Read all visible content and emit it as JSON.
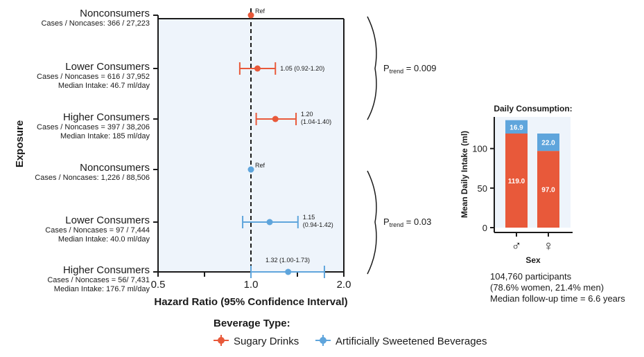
{
  "colors": {
    "sugary": "#e8593a",
    "artificial": "#5fa5dc",
    "panel_bg": "#eef4fb",
    "axis": "#1a1a1a"
  },
  "chart_data": [
    {
      "type": "forest",
      "ylabel": "Exposure",
      "xlabel": "Hazard Ratio (95% Confidence Interval)",
      "xscale": "log",
      "xlim": [
        0.5,
        2.0
      ],
      "xticks": [
        0.5,
        0.7071,
        1.0,
        1.4142,
        2.0
      ],
      "xtick_labels": [
        "0.5",
        "",
        "1.0",
        "",
        "2.0"
      ],
      "reference_line": 1.0,
      "rows": [
        {
          "group": "Sugary Drinks",
          "series": "sugary",
          "title": "Nonconsumers",
          "sub": [
            "Cases / Noncases: 366 / 27,223"
          ],
          "hr": 1.0,
          "lo": null,
          "hi": null,
          "label": "Ref"
        },
        {
          "group": "Sugary Drinks",
          "series": "sugary",
          "title": "Lower Consumers",
          "sub": [
            "Cases / Noncases = 616 / 37,952",
            "Median Intake: 46.7 ml/day"
          ],
          "hr": 1.05,
          "lo": 0.92,
          "hi": 1.2,
          "label": "1.05 (0.92-1.20)"
        },
        {
          "group": "Sugary Drinks",
          "series": "sugary",
          "title": "Higher Consumers",
          "sub": [
            "Cases / Noncases = 397 / 38,206",
            "Median Intake: 185 ml/day"
          ],
          "hr": 1.2,
          "lo": 1.04,
          "hi": 1.4,
          "label": "1.20\n(1.04-1.40)"
        },
        {
          "group": "Artificially Sweetened Beverages",
          "series": "artificial",
          "title": "Nonconsumers",
          "sub": [
            "Cases / Noncases: 1,226 / 88,506"
          ],
          "hr": 1.0,
          "lo": null,
          "hi": null,
          "label": "Ref"
        },
        {
          "group": "Artificially Sweetened Beverages",
          "series": "artificial",
          "title": "Lower Consumers",
          "sub": [
            "Cases / Noncases = 97 / 7,444",
            "Median Intake: 40.0 ml/day"
          ],
          "hr": 1.15,
          "lo": 0.94,
          "hi": 1.42,
          "label": "1.15\n(0.94-1.42)"
        },
        {
          "group": "Artificially Sweetened Beverages",
          "series": "artificial",
          "title": "Higher Consumers",
          "sub": [
            "Cases / Noncases = 56/ 7,431",
            "Median Intake: 176.7 ml/day"
          ],
          "hr": 1.32,
          "lo": 1.0,
          "hi": 1.73,
          "label": "1.32 (1.00-1.73)"
        }
      ],
      "trend": [
        {
          "group": "Sugary Drinks",
          "p_main": "P",
          "p_sub": "trend",
          "value": " = 0.009"
        },
        {
          "group": "Artificially Sweetened Beverages",
          "p_main": "P",
          "p_sub": "trend",
          "value": " = 0.03"
        }
      ],
      "legend": {
        "title": "Beverage Type:",
        "items": [
          {
            "series": "sugary",
            "label": "Sugary Drinks"
          },
          {
            "series": "artificial",
            "label": "Artificially Sweetened Beverages"
          }
        ],
        "position": "bottom-center"
      }
    },
    {
      "type": "bar",
      "stacked": true,
      "title": "Daily Consumption:",
      "xlabel": "Sex",
      "ylabel": "Mean Daily Intake (ml)",
      "categories": [
        "♂",
        "♀"
      ],
      "category_names": [
        "Male",
        "Female"
      ],
      "ylim": [
        0,
        140
      ],
      "yticks": [
        0,
        50,
        100
      ],
      "series": [
        {
          "name": "Sugary Drinks",
          "color_key": "sugary",
          "values": [
            119.0,
            97.0
          ],
          "labels": [
            "119.0",
            "97.0"
          ]
        },
        {
          "name": "Artificially Sweetened Beverages",
          "color_key": "artificial",
          "values": [
            16.9,
            22.0
          ],
          "labels": [
            "16.9",
            "22.0"
          ]
        }
      ]
    }
  ],
  "stats": {
    "lines": [
      "104,760 participants",
      "(78.6% women, 21.4% men)",
      "Median follow-up time = 6.6 years"
    ]
  }
}
